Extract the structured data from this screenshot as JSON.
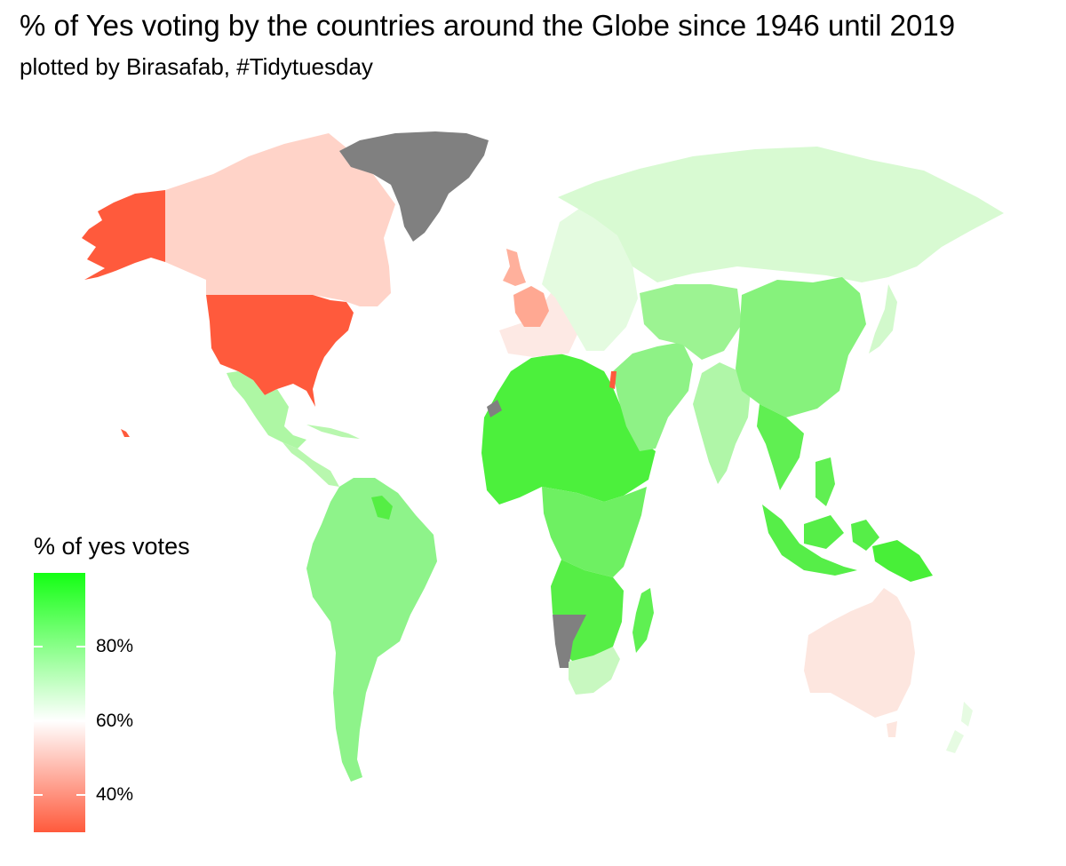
{
  "header": {
    "title": "% of Yes voting by the countries around the Globe since 1946 until 2019",
    "subtitle": "plotted by Birasafab, #Tidytuesday"
  },
  "legend": {
    "title": "% of yes votes",
    "colors": {
      "high": "#14ff14",
      "mid": "#ffffff",
      "low": "#ff5a3c",
      "missing": "#808080"
    },
    "range": [
      30,
      100
    ],
    "ticks": [
      {
        "value": 80,
        "label": "80%"
      },
      {
        "value": 60,
        "label": "60%"
      },
      {
        "value": 40,
        "label": "40%"
      }
    ]
  },
  "regions": [
    {
      "name": "alaska",
      "fill": "#ff5a3c"
    },
    {
      "name": "canada",
      "fill": "#ffd3c8"
    },
    {
      "name": "greenland",
      "fill": "#808080"
    },
    {
      "name": "usa",
      "fill": "#ff5a3c"
    },
    {
      "name": "mexico",
      "fill": "#aef7a4"
    },
    {
      "name": "central-america",
      "fill": "#b8f7ae"
    },
    {
      "name": "south-america",
      "fill": "#8ef38a"
    },
    {
      "name": "guianas",
      "fill": "#55ee44"
    },
    {
      "name": "africa-north",
      "fill": "#4cf03c"
    },
    {
      "name": "africa-central",
      "fill": "#6ef062"
    },
    {
      "name": "africa-south",
      "fill": "#56ee46"
    },
    {
      "name": "namibia",
      "fill": "#808080"
    },
    {
      "name": "south-africa",
      "fill": "#c8f8c0"
    },
    {
      "name": "madagascar",
      "fill": "#5ff052"
    },
    {
      "name": "europe-west",
      "fill": "#fde9e4"
    },
    {
      "name": "uk",
      "fill": "#ffb09c"
    },
    {
      "name": "france",
      "fill": "#ffa892"
    },
    {
      "name": "europe-east",
      "fill": "#e4fbe0"
    },
    {
      "name": "russia",
      "fill": "#d8fad2"
    },
    {
      "name": "middle-east",
      "fill": "#8ef286"
    },
    {
      "name": "central-asia",
      "fill": "#9cf392"
    },
    {
      "name": "india",
      "fill": "#b0f6a8"
    },
    {
      "name": "china",
      "fill": "#86f27c"
    },
    {
      "name": "se-asia",
      "fill": "#60ef52"
    },
    {
      "name": "indonesia",
      "fill": "#56ee48"
    },
    {
      "name": "papua",
      "fill": "#48ef38"
    },
    {
      "name": "australia",
      "fill": "#fde6df"
    },
    {
      "name": "new-zealand",
      "fill": "#e6fbe2"
    },
    {
      "name": "japan",
      "fill": "#d2f9cc"
    },
    {
      "name": "israel",
      "fill": "#ff5a3c"
    },
    {
      "name": "western-sahara",
      "fill": "#808080"
    },
    {
      "name": "hawaii",
      "fill": "#ff5a3c"
    }
  ]
}
